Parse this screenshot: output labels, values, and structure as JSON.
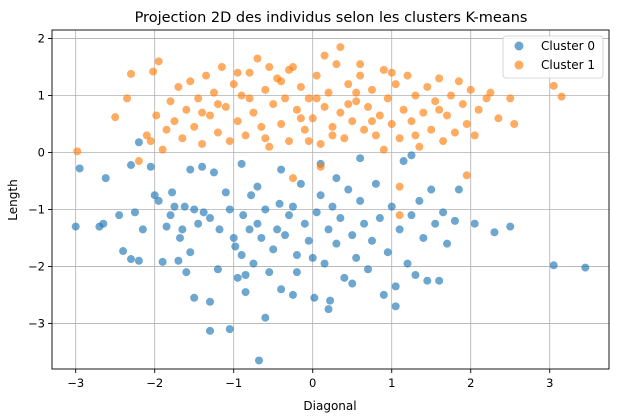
{
  "chart_data": {
    "type": "scatter",
    "title": "Projection 2D des individus selon les clusters K-means",
    "xlabel": "Diagonal",
    "ylabel": "Length",
    "xlim": [
      -3.3,
      3.75
    ],
    "ylim": [
      -3.8,
      2.15
    ],
    "xticks": [
      -3,
      -2,
      -1,
      0,
      1,
      2,
      3
    ],
    "yticks": [
      -3,
      -2,
      -1,
      0,
      1,
      2
    ],
    "grid": true,
    "legend_position": "top-right",
    "series": [
      {
        "name": "Cluster 0",
        "color": "#1f77b4",
        "points": [
          [
            -3.0,
            -1.3
          ],
          [
            -2.95,
            -0.28
          ],
          [
            -2.7,
            -1.3
          ],
          [
            -2.65,
            -1.25
          ],
          [
            -2.62,
            -0.45
          ],
          [
            -2.45,
            -1.1
          ],
          [
            -2.4,
            -1.73
          ],
          [
            -2.3,
            -1.87
          ],
          [
            -2.3,
            -0.22
          ],
          [
            -2.25,
            -1.05
          ],
          [
            -2.2,
            0.18
          ],
          [
            -2.15,
            -1.35
          ],
          [
            -2.05,
            -0.25
          ],
          [
            -2.0,
            -0.75
          ],
          [
            -1.95,
            -0.85
          ],
          [
            -1.9,
            -1.92
          ],
          [
            -1.85,
            -1.3
          ],
          [
            -1.8,
            -1.1
          ],
          [
            -1.78,
            -0.7
          ],
          [
            -1.75,
            -0.95
          ],
          [
            -1.7,
            -1.9
          ],
          [
            -1.68,
            -1.5
          ],
          [
            -1.65,
            -1.35
          ],
          [
            -1.62,
            -0.95
          ],
          [
            -1.55,
            -1.75
          ],
          [
            -1.5,
            -1.0
          ],
          [
            -1.45,
            -1.25
          ],
          [
            -1.4,
            -0.25
          ],
          [
            -1.38,
            -1.05
          ],
          [
            -1.3,
            -1.15
          ],
          [
            -1.25,
            -0.35
          ],
          [
            -1.2,
            -2.05
          ],
          [
            -1.18,
            -1.35
          ],
          [
            -1.1,
            -0.7
          ],
          [
            -1.05,
            -1.0
          ],
          [
            -1.0,
            -1.5
          ],
          [
            -0.98,
            -1.65
          ],
          [
            -0.95,
            -2.2
          ],
          [
            -0.9,
            -1.8
          ],
          [
            -0.88,
            -1.1
          ],
          [
            -0.85,
            -2.15
          ],
          [
            -0.8,
            -1.35
          ],
          [
            -0.78,
            -0.75
          ],
          [
            -0.75,
            -1.95
          ],
          [
            -0.7,
            -1.25
          ],
          [
            -0.68,
            -3.65
          ],
          [
            -0.65,
            -1.5
          ],
          [
            -0.6,
            -1.0
          ],
          [
            -0.55,
            -2.1
          ],
          [
            -0.5,
            -1.7
          ],
          [
            -0.45,
            -1.35
          ],
          [
            -0.42,
            -0.9
          ],
          [
            -0.4,
            -2.4
          ],
          [
            -0.35,
            -1.45
          ],
          [
            -0.3,
            -1.1
          ],
          [
            -0.25,
            -2.5
          ],
          [
            -0.2,
            -1.8
          ],
          [
            -0.15,
            -0.55
          ],
          [
            -0.1,
            -1.25
          ],
          [
            -0.05,
            -1.55
          ],
          [
            0.0,
            -1.85
          ],
          [
            0.02,
            -2.55
          ],
          [
            0.05,
            -1.05
          ],
          [
            0.1,
            -0.75
          ],
          [
            0.15,
            -1.95
          ],
          [
            0.2,
            -1.35
          ],
          [
            0.22,
            -2.6
          ],
          [
            0.25,
            -0.95
          ],
          [
            0.3,
            -1.6
          ],
          [
            0.35,
            -1.15
          ],
          [
            0.4,
            -2.2
          ],
          [
            0.45,
            -0.65
          ],
          [
            0.5,
            -1.45
          ],
          [
            0.55,
            -1.85
          ],
          [
            0.6,
            -0.85
          ],
          [
            0.65,
            -1.25
          ],
          [
            0.7,
            -2.05
          ],
          [
            0.75,
            -1.55
          ],
          [
            0.8,
            -0.55
          ],
          [
            0.85,
            -1.15
          ],
          [
            0.9,
            -2.5
          ],
          [
            0.95,
            -1.75
          ],
          [
            1.0,
            -0.95
          ],
          [
            1.05,
            -2.35
          ],
          [
            1.1,
            -1.35
          ],
          [
            1.15,
            -0.15
          ],
          [
            1.2,
            -1.95
          ],
          [
            1.25,
            -1.1
          ],
          [
            1.3,
            -2.15
          ],
          [
            1.35,
            -0.85
          ],
          [
            1.4,
            -1.5
          ],
          [
            1.45,
            -2.25
          ],
          [
            1.5,
            -0.65
          ],
          [
            1.55,
            -1.25
          ],
          [
            1.6,
            -2.25
          ],
          [
            1.65,
            -1.05
          ],
          [
            1.7,
            -1.6
          ],
          [
            1.8,
            -1.2
          ],
          [
            1.85,
            -0.65
          ],
          [
            2.05,
            -1.25
          ],
          [
            2.3,
            -1.4
          ],
          [
            2.5,
            -1.3
          ],
          [
            3.05,
            -1.98
          ],
          [
            3.45,
            -2.02
          ],
          [
            -1.3,
            -2.62
          ],
          [
            -1.05,
            -3.1
          ],
          [
            -1.3,
            -3.13
          ],
          [
            -0.85,
            -2.45
          ],
          [
            0.2,
            -2.75
          ],
          [
            -0.6,
            -2.9
          ],
          [
            1.05,
            -2.7
          ],
          [
            0.5,
            -2.3
          ],
          [
            -0.2,
            -2.1
          ],
          [
            -1.6,
            -2.1
          ],
          [
            -2.2,
            -1.9
          ],
          [
            -1.5,
            -2.55
          ],
          [
            -0.4,
            -0.3
          ],
          [
            0.1,
            -0.2
          ],
          [
            0.6,
            -0.1
          ],
          [
            -0.9,
            -0.2
          ],
          [
            1.25,
            -0.05
          ],
          [
            -1.55,
            -0.3
          ],
          [
            -0.25,
            -0.95
          ],
          [
            0.3,
            -0.45
          ],
          [
            -0.7,
            -0.6
          ]
        ]
      },
      {
        "name": "Cluster 1",
        "color": "#ff7f0e",
        "points": [
          [
            -2.98,
            0.02
          ],
          [
            -2.5,
            0.62
          ],
          [
            -2.35,
            0.95
          ],
          [
            -2.3,
            1.38
          ],
          [
            -2.2,
            -0.15
          ],
          [
            -2.1,
            0.3
          ],
          [
            -2.05,
            0.2
          ],
          [
            -2.02,
            1.42
          ],
          [
            -1.98,
            0.65
          ],
          [
            -1.95,
            1.6
          ],
          [
            -1.9,
            0.05
          ],
          [
            -1.85,
            0.4
          ],
          [
            -1.8,
            0.9
          ],
          [
            -1.75,
            0.55
          ],
          [
            -1.7,
            1.15
          ],
          [
            -1.65,
            0.25
          ],
          [
            -1.6,
            0.75
          ],
          [
            -1.55,
            1.25
          ],
          [
            -1.5,
            0.45
          ],
          [
            -1.45,
            0.95
          ],
          [
            -1.4,
            0.15
          ],
          [
            -1.35,
            1.35
          ],
          [
            -1.3,
            0.65
          ],
          [
            -1.25,
            1.05
          ],
          [
            -1.2,
            0.35
          ],
          [
            -1.15,
            1.5
          ],
          [
            -1.1,
            0.8
          ],
          [
            -1.05,
            0.2
          ],
          [
            -1.0,
            1.2
          ],
          [
            -0.95,
            0.55
          ],
          [
            -0.9,
            1.0
          ],
          [
            -0.85,
            0.3
          ],
          [
            -0.8,
            1.4
          ],
          [
            -0.75,
            0.7
          ],
          [
            -0.7,
            1.65
          ],
          [
            -0.65,
            0.45
          ],
          [
            -0.6,
            1.1
          ],
          [
            -0.55,
            0.1
          ],
          [
            -0.5,
            0.85
          ],
          [
            -0.45,
            1.3
          ],
          [
            -0.4,
            0.5
          ],
          [
            -0.35,
            0.95
          ],
          [
            -0.3,
            0.2
          ],
          [
            -0.25,
            1.5
          ],
          [
            -0.2,
            0.75
          ],
          [
            -0.15,
            1.15
          ],
          [
            -0.1,
            0.4
          ],
          [
            -0.05,
            0.95
          ],
          [
            0.0,
            0.6
          ],
          [
            0.05,
            1.35
          ],
          [
            0.1,
            0.15
          ],
          [
            0.15,
            0.8
          ],
          [
            0.2,
            1.05
          ],
          [
            0.25,
            0.45
          ],
          [
            0.3,
            1.55
          ],
          [
            0.35,
            0.7
          ],
          [
            0.4,
            0.25
          ],
          [
            0.45,
            1.2
          ],
          [
            0.5,
            0.55
          ],
          [
            0.55,
            0.9
          ],
          [
            0.6,
            1.35
          ],
          [
            0.65,
            0.4
          ],
          [
            0.7,
            0.8
          ],
          [
            0.75,
            1.1
          ],
          [
            0.8,
            0.3
          ],
          [
            0.85,
            0.65
          ],
          [
            0.9,
            1.45
          ],
          [
            0.95,
            0.95
          ],
          [
            1.0,
            0.5
          ],
          [
            1.05,
            1.2
          ],
          [
            1.1,
            0.25
          ],
          [
            1.15,
            0.75
          ],
          [
            1.2,
            1.35
          ],
          [
            1.25,
            0.55
          ],
          [
            1.3,
            1.0
          ],
          [
            1.35,
            0.1
          ],
          [
            1.4,
            0.7
          ],
          [
            1.45,
            1.15
          ],
          [
            1.5,
            0.4
          ],
          [
            1.55,
            0.9
          ],
          [
            1.6,
            1.3
          ],
          [
            1.65,
            0.2
          ],
          [
            1.7,
            0.65
          ],
          [
            1.75,
            1.0
          ],
          [
            1.8,
            0.35
          ],
          [
            1.85,
            1.25
          ],
          [
            1.9,
            0.85
          ],
          [
            1.95,
            0.5
          ],
          [
            2.0,
            1.1
          ],
          [
            2.05,
            0.3
          ],
          [
            2.1,
            0.75
          ],
          [
            2.2,
            0.95
          ],
          [
            2.25,
            1.05
          ],
          [
            2.35,
            0.6
          ],
          [
            2.5,
            0.95
          ],
          [
            2.55,
            0.5
          ],
          [
            3.05,
            1.17
          ],
          [
            3.15,
            0.98
          ],
          [
            0.35,
            1.85
          ],
          [
            0.15,
            1.7
          ],
          [
            -0.3,
            1.45
          ],
          [
            -0.55,
            1.5
          ],
          [
            0.6,
            1.55
          ],
          [
            1.0,
            1.4
          ],
          [
            -0.95,
            1.4
          ],
          [
            0.05,
            0.95
          ],
          [
            0.25,
            0.3
          ],
          [
            -0.15,
            0.6
          ],
          [
            0.45,
            0.85
          ],
          [
            -0.6,
            0.25
          ],
          [
            0.75,
            0.55
          ],
          [
            -1.4,
            0.7
          ],
          [
            1.3,
            0.3
          ],
          [
            -0.05,
            0.2
          ],
          [
            0.9,
            0.05
          ],
          [
            -0.25,
            -0.45
          ],
          [
            0.1,
            -0.25
          ],
          [
            1.1,
            -1.1
          ],
          [
            1.1,
            -0.6
          ],
          [
            1.95,
            -0.4
          ],
          [
            -0.4,
            1.25
          ],
          [
            0.55,
            1.05
          ],
          [
            -0.8,
            0.95
          ],
          [
            1.6,
            0.75
          ],
          [
            -1.2,
            0.85
          ]
        ]
      }
    ]
  }
}
